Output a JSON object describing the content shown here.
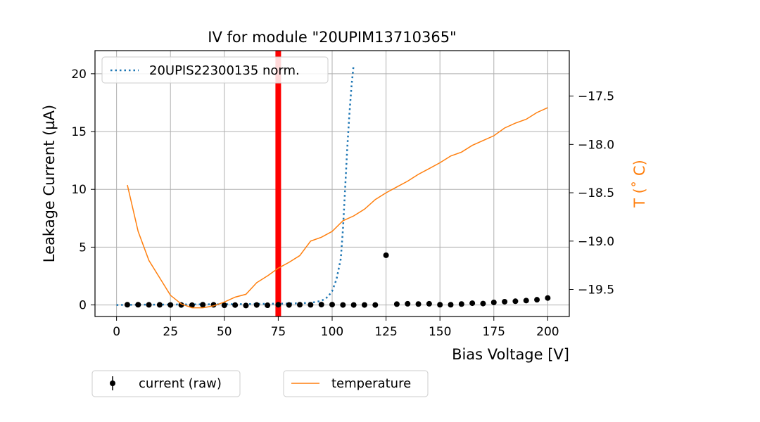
{
  "chart_data": {
    "type": "line",
    "title": "IV for module \"20UPIM13710365\"",
    "xlabel": "Bias Voltage [V]",
    "ylabel": "Leakage Current (µA)",
    "y2label": "T (˚ C)",
    "xlim": [
      -10,
      210
    ],
    "ylim": [
      -1,
      22
    ],
    "y2lim": [
      -19.78,
      -17.03
    ],
    "x_ticks": [
      "0",
      "25",
      "50",
      "75",
      "100",
      "125",
      "150",
      "175",
      "200"
    ],
    "y_ticks": [
      "0",
      "5",
      "10",
      "15",
      "20"
    ],
    "y2_ticks": [
      "−19.5",
      "−19.0",
      "−18.5",
      "−18.0",
      "−17.5"
    ],
    "grid": true,
    "vertical_marker": {
      "x": 75,
      "color": "#ff0000"
    },
    "series": [
      {
        "name": "20UPIS22300135 norm.",
        "axis": "left",
        "style": "dotted",
        "color": "#1f77b4",
        "x": [
          0,
          10,
          20,
          30,
          40,
          50,
          60,
          70,
          80,
          90,
          95,
          98,
          100,
          102,
          104,
          105,
          106,
          107,
          108,
          109,
          110
        ],
        "y": [
          0.0,
          0.02,
          0.03,
          0.04,
          0.05,
          0.06,
          0.08,
          0.1,
          0.12,
          0.18,
          0.35,
          0.7,
          1.2,
          2.2,
          4.0,
          6.5,
          10.0,
          13.5,
          16.5,
          19.0,
          20.8
        ]
      },
      {
        "name": "current (raw)",
        "axis": "left",
        "style": "markers",
        "color": "#000000",
        "x": [
          5,
          10,
          15,
          20,
          25,
          30,
          35,
          40,
          45,
          50,
          55,
          60,
          65,
          70,
          75,
          80,
          85,
          90,
          95,
          100,
          105,
          110,
          115,
          120,
          125,
          130,
          135,
          140,
          145,
          150,
          155,
          160,
          165,
          170,
          175,
          180,
          185,
          190,
          195,
          200
        ],
        "y": [
          0.02,
          0.02,
          0.01,
          0.01,
          0.0,
          0.0,
          -0.02,
          0.02,
          0.01,
          -0.03,
          -0.01,
          -0.05,
          0.0,
          -0.03,
          0.02,
          0.0,
          0.02,
          0.01,
          0.03,
          0.03,
          0.0,
          0.0,
          0.0,
          0.0,
          4.3,
          0.07,
          0.1,
          0.08,
          0.1,
          0.02,
          0.02,
          0.08,
          0.15,
          0.12,
          0.22,
          0.28,
          0.32,
          0.38,
          0.45,
          0.6
        ]
      },
      {
        "name": "temperature",
        "axis": "right",
        "style": "solid",
        "color": "#ff7f0e",
        "x": [
          5,
          10,
          15,
          20,
          25,
          30,
          35,
          40,
          45,
          50,
          55,
          60,
          65,
          70,
          75,
          80,
          85,
          90,
          95,
          100,
          105,
          110,
          115,
          120,
          125,
          130,
          135,
          140,
          145,
          150,
          155,
          160,
          165,
          170,
          175,
          180,
          185,
          190,
          195,
          200
        ],
        "y": [
          -18.42,
          -18.9,
          -19.2,
          -19.38,
          -19.56,
          -19.65,
          -19.69,
          -19.69,
          -19.67,
          -19.63,
          -19.58,
          -19.55,
          -19.43,
          -19.36,
          -19.28,
          -19.22,
          -19.15,
          -19.0,
          -18.96,
          -18.9,
          -18.79,
          -18.74,
          -18.67,
          -18.57,
          -18.5,
          -18.44,
          -18.38,
          -18.31,
          -18.25,
          -18.19,
          -18.12,
          -18.08,
          -18.01,
          -17.96,
          -17.91,
          -17.83,
          -17.78,
          -17.74,
          -17.67,
          -17.62
        ]
      }
    ],
    "legends": [
      {
        "position": "upper-left-inside",
        "entries": [
          "20UPIS22300135 norm."
        ]
      },
      {
        "position": "below-left",
        "entries": [
          "current (raw)"
        ]
      },
      {
        "position": "below-center",
        "entries": [
          "temperature"
        ]
      }
    ]
  }
}
